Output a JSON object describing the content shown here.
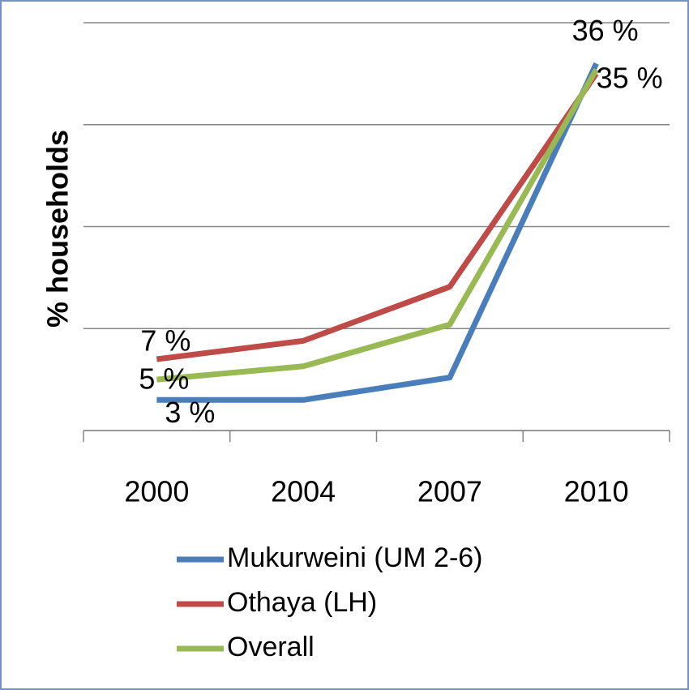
{
  "chart_data": {
    "type": "line",
    "y_label": "% households",
    "categories": [
      "2000",
      "2004",
      "2007",
      "2010"
    ],
    "series": [
      {
        "name": "Mukurweini (UM 2-6)",
        "color": "#4a7ebb",
        "values": [
          3,
          3,
          5.2,
          36
        ],
        "value_labels": [
          "3 %",
          null,
          null,
          "36 %"
        ]
      },
      {
        "name": "Othaya (LH)",
        "color": "#be4b48",
        "values": [
          7,
          8.8,
          14.1,
          35
        ],
        "value_labels": [
          "7 %",
          null,
          null,
          "35 %"
        ]
      },
      {
        "name": "Overall",
        "color": "#98b954",
        "values": [
          5,
          6.3,
          10.4,
          35.4
        ],
        "value_labels": [
          "5 %",
          null,
          null,
          null
        ]
      }
    ],
    "ylim": [
      0,
      40
    ],
    "yticks": [
      0,
      10,
      20,
      30,
      40
    ],
    "ytick_labels": false,
    "grid": true,
    "legend": "bottom"
  }
}
